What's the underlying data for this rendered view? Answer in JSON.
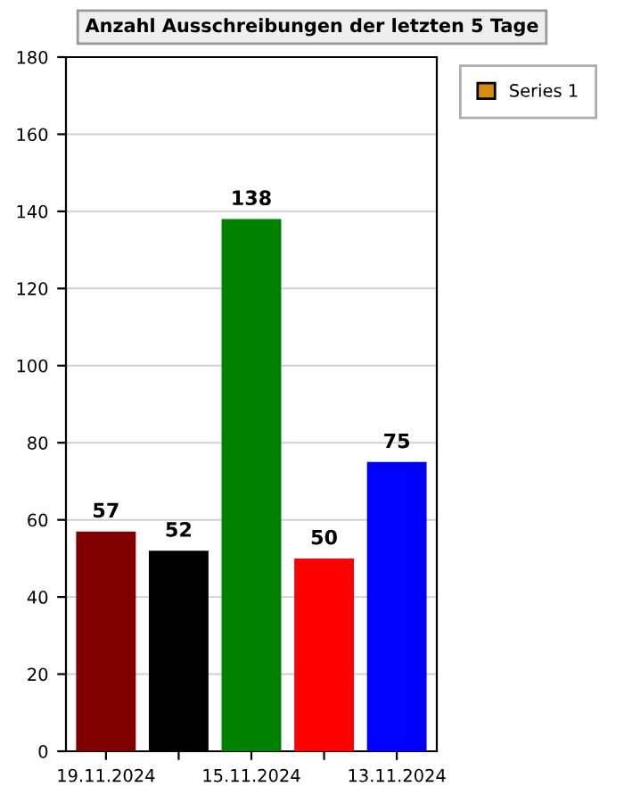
{
  "chart_data": {
    "type": "bar",
    "title": "Anzahl Ausschreibungen der letzten 5 Tage",
    "categories": [
      "19.11.2024",
      null,
      "15.11.2024",
      null,
      "13.11.2024"
    ],
    "series": [
      {
        "name": "Series 1",
        "color": "#d98c0a",
        "colors": [
          "#800000",
          "#000000",
          "#008000",
          "#ff0000",
          "#0000ff"
        ],
        "values": [
          57,
          52,
          138,
          50,
          75
        ]
      }
    ],
    "ylim": [
      0,
      180
    ],
    "yticks": [
      0,
      20,
      40,
      60,
      80,
      100,
      120,
      140,
      160,
      180
    ],
    "grid": "y",
    "legend": "top right",
    "data_labels": true
  }
}
